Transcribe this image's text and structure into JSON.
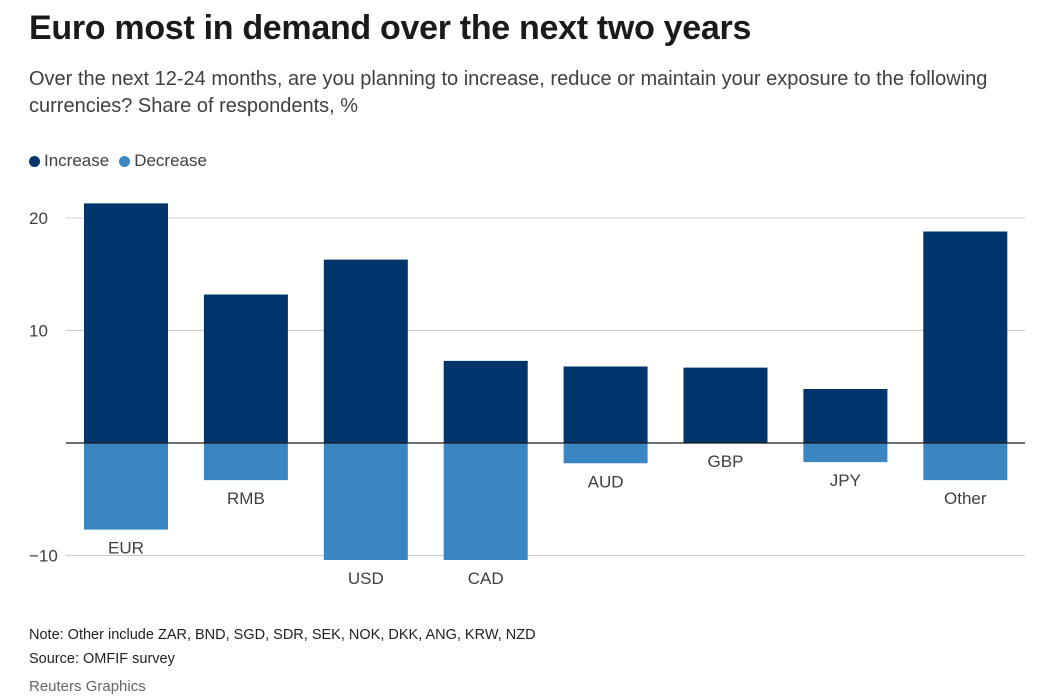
{
  "chart_data": {
    "type": "bar",
    "title": "Euro most in demand over the next two years",
    "subtitle": "Over the next 12-24 months, are you planning to increase, reduce or maintain your exposure to the following currencies? Share of respondents, %",
    "categories": [
      "EUR",
      "RMB",
      "USD",
      "CAD",
      "AUD",
      "GBP",
      "JPY",
      "Other"
    ],
    "series": [
      {
        "name": "Increase",
        "color": "#00356b",
        "values": [
          21.3,
          13.2,
          16.3,
          7.3,
          6.8,
          6.7,
          4.8,
          18.8
        ]
      },
      {
        "name": "Decrease",
        "color": "#3a86c3",
        "values": [
          -7.7,
          -3.3,
          -10.4,
          -10.4,
          -1.8,
          0,
          -1.7,
          -3.3
        ]
      }
    ],
    "yticks": [
      20,
      10,
      -10
    ],
    "ytick_labels": [
      "20",
      "10",
      "−10"
    ],
    "ylim": [
      -10,
      20
    ],
    "grid": true,
    "legend_position": "top-left",
    "xlabel": "",
    "ylabel": ""
  },
  "legend": {
    "increase_label": "Increase",
    "decrease_label": "Decrease"
  },
  "footer": {
    "note": "Note: Other include ZAR, BND, SGD, SDR, SEK, NOK, DKK, ANG, KRW, NZD",
    "source": "Source: OMFIF survey",
    "credit": "Reuters Graphics"
  }
}
